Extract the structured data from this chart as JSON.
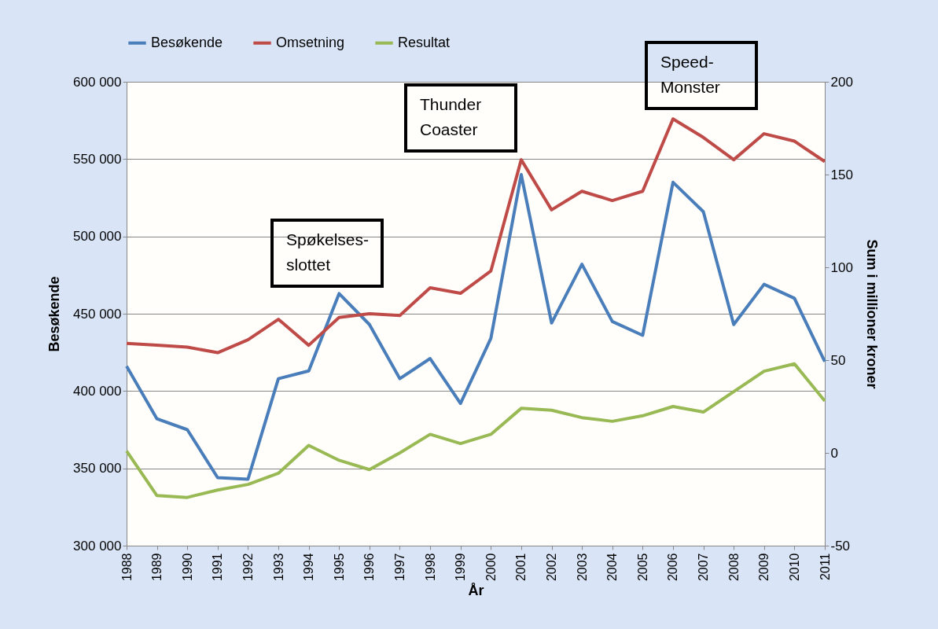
{
  "chart_data": {
    "type": "line",
    "xlabel": "År",
    "ylabel": "Besøkende",
    "y2label": "Sum i millioner kroner",
    "categories": [
      "1988",
      "1989",
      "1990",
      "1991",
      "1992",
      "1993",
      "1994",
      "1995",
      "1996",
      "1997",
      "1998",
      "1999",
      "2000",
      "2001",
      "2002",
      "2003",
      "2004",
      "2005",
      "2006",
      "2007",
      "2008",
      "2009",
      "2010",
      "2011"
    ],
    "series": [
      {
        "name": "Besøkende",
        "color": "#4a7ebb",
        "values": [
          416000,
          382000,
          375000,
          344000,
          343000,
          408000,
          413000,
          463000,
          443000,
          408000,
          421000,
          392000,
          434000,
          540000,
          444000,
          482000,
          445000,
          436000,
          535000,
          516000,
          443000,
          469000,
          460000,
          419000
        ]
      },
      {
        "name": "Omsetning",
        "color": "#be4b48",
        "axis": "y2",
        "values": [
          59,
          58,
          57,
          54,
          61,
          72,
          58,
          73,
          75,
          74,
          89,
          86,
          98,
          158,
          131,
          141,
          136,
          141,
          180,
          170,
          158,
          172,
          168,
          157
        ]
      },
      {
        "name": "Resultat",
        "color": "#98b954",
        "axis": "y2",
        "values": [
          1,
          -23,
          -24,
          -20,
          -17,
          -11,
          4,
          -4,
          -9,
          0,
          10,
          5,
          10,
          24,
          23,
          19,
          17,
          20,
          25,
          22,
          33,
          44,
          48,
          28
        ]
      }
    ],
    "ylim": [
      300000,
      600000
    ],
    "yticks": [
      {
        "value": 300000,
        "label": "300 000"
      },
      {
        "value": 350000,
        "label": "350 000"
      },
      {
        "value": 400000,
        "label": "400 000"
      },
      {
        "value": 450000,
        "label": "450 000"
      },
      {
        "value": 500000,
        "label": "500 000"
      },
      {
        "value": 550000,
        "label": "550 000"
      },
      {
        "value": 600000,
        "label": "600 000"
      }
    ],
    "y2lim": [
      -50,
      200
    ],
    "y2ticks": [
      -50,
      0,
      50,
      100,
      150,
      200
    ],
    "grid": "y",
    "legend": "top",
    "annotations": [
      "Spøkelses-slottet",
      "Thunder Coaster",
      "Speed-Monster"
    ]
  }
}
